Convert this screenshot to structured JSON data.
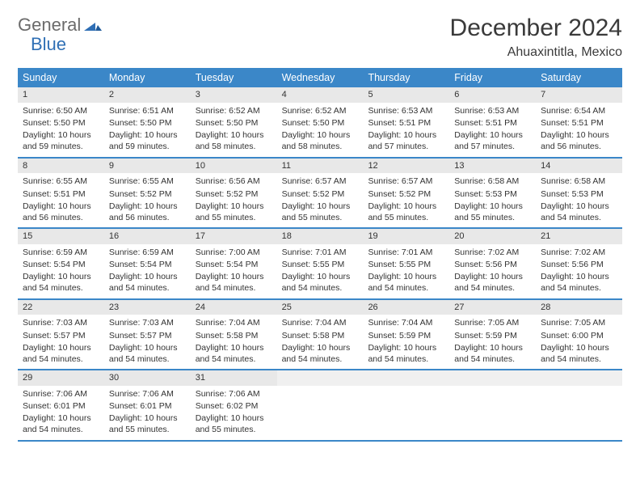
{
  "logo": {
    "text1": "General",
    "text2": "Blue"
  },
  "title": "December 2024",
  "location": "Ahuaxintitla, Mexico",
  "colors": {
    "header_bg": "#3b87c8",
    "header_text": "#ffffff",
    "daynum_bg": "#e8e8e8",
    "border": "#3b87c8",
    "logo_gray": "#6b6b6b",
    "logo_blue": "#2f6fb5"
  },
  "day_names": [
    "Sunday",
    "Monday",
    "Tuesday",
    "Wednesday",
    "Thursday",
    "Friday",
    "Saturday"
  ],
  "weeks": [
    [
      {
        "n": "1",
        "sr": "Sunrise: 6:50 AM",
        "ss": "Sunset: 5:50 PM",
        "dl": "Daylight: 10 hours and 59 minutes."
      },
      {
        "n": "2",
        "sr": "Sunrise: 6:51 AM",
        "ss": "Sunset: 5:50 PM",
        "dl": "Daylight: 10 hours and 59 minutes."
      },
      {
        "n": "3",
        "sr": "Sunrise: 6:52 AM",
        "ss": "Sunset: 5:50 PM",
        "dl": "Daylight: 10 hours and 58 minutes."
      },
      {
        "n": "4",
        "sr": "Sunrise: 6:52 AM",
        "ss": "Sunset: 5:50 PM",
        "dl": "Daylight: 10 hours and 58 minutes."
      },
      {
        "n": "5",
        "sr": "Sunrise: 6:53 AM",
        "ss": "Sunset: 5:51 PM",
        "dl": "Daylight: 10 hours and 57 minutes."
      },
      {
        "n": "6",
        "sr": "Sunrise: 6:53 AM",
        "ss": "Sunset: 5:51 PM",
        "dl": "Daylight: 10 hours and 57 minutes."
      },
      {
        "n": "7",
        "sr": "Sunrise: 6:54 AM",
        "ss": "Sunset: 5:51 PM",
        "dl": "Daylight: 10 hours and 56 minutes."
      }
    ],
    [
      {
        "n": "8",
        "sr": "Sunrise: 6:55 AM",
        "ss": "Sunset: 5:51 PM",
        "dl": "Daylight: 10 hours and 56 minutes."
      },
      {
        "n": "9",
        "sr": "Sunrise: 6:55 AM",
        "ss": "Sunset: 5:52 PM",
        "dl": "Daylight: 10 hours and 56 minutes."
      },
      {
        "n": "10",
        "sr": "Sunrise: 6:56 AM",
        "ss": "Sunset: 5:52 PM",
        "dl": "Daylight: 10 hours and 55 minutes."
      },
      {
        "n": "11",
        "sr": "Sunrise: 6:57 AM",
        "ss": "Sunset: 5:52 PM",
        "dl": "Daylight: 10 hours and 55 minutes."
      },
      {
        "n": "12",
        "sr": "Sunrise: 6:57 AM",
        "ss": "Sunset: 5:52 PM",
        "dl": "Daylight: 10 hours and 55 minutes."
      },
      {
        "n": "13",
        "sr": "Sunrise: 6:58 AM",
        "ss": "Sunset: 5:53 PM",
        "dl": "Daylight: 10 hours and 55 minutes."
      },
      {
        "n": "14",
        "sr": "Sunrise: 6:58 AM",
        "ss": "Sunset: 5:53 PM",
        "dl": "Daylight: 10 hours and 54 minutes."
      }
    ],
    [
      {
        "n": "15",
        "sr": "Sunrise: 6:59 AM",
        "ss": "Sunset: 5:54 PM",
        "dl": "Daylight: 10 hours and 54 minutes."
      },
      {
        "n": "16",
        "sr": "Sunrise: 6:59 AM",
        "ss": "Sunset: 5:54 PM",
        "dl": "Daylight: 10 hours and 54 minutes."
      },
      {
        "n": "17",
        "sr": "Sunrise: 7:00 AM",
        "ss": "Sunset: 5:54 PM",
        "dl": "Daylight: 10 hours and 54 minutes."
      },
      {
        "n": "18",
        "sr": "Sunrise: 7:01 AM",
        "ss": "Sunset: 5:55 PM",
        "dl": "Daylight: 10 hours and 54 minutes."
      },
      {
        "n": "19",
        "sr": "Sunrise: 7:01 AM",
        "ss": "Sunset: 5:55 PM",
        "dl": "Daylight: 10 hours and 54 minutes."
      },
      {
        "n": "20",
        "sr": "Sunrise: 7:02 AM",
        "ss": "Sunset: 5:56 PM",
        "dl": "Daylight: 10 hours and 54 minutes."
      },
      {
        "n": "21",
        "sr": "Sunrise: 7:02 AM",
        "ss": "Sunset: 5:56 PM",
        "dl": "Daylight: 10 hours and 54 minutes."
      }
    ],
    [
      {
        "n": "22",
        "sr": "Sunrise: 7:03 AM",
        "ss": "Sunset: 5:57 PM",
        "dl": "Daylight: 10 hours and 54 minutes."
      },
      {
        "n": "23",
        "sr": "Sunrise: 7:03 AM",
        "ss": "Sunset: 5:57 PM",
        "dl": "Daylight: 10 hours and 54 minutes."
      },
      {
        "n": "24",
        "sr": "Sunrise: 7:04 AM",
        "ss": "Sunset: 5:58 PM",
        "dl": "Daylight: 10 hours and 54 minutes."
      },
      {
        "n": "25",
        "sr": "Sunrise: 7:04 AM",
        "ss": "Sunset: 5:58 PM",
        "dl": "Daylight: 10 hours and 54 minutes."
      },
      {
        "n": "26",
        "sr": "Sunrise: 7:04 AM",
        "ss": "Sunset: 5:59 PM",
        "dl": "Daylight: 10 hours and 54 minutes."
      },
      {
        "n": "27",
        "sr": "Sunrise: 7:05 AM",
        "ss": "Sunset: 5:59 PM",
        "dl": "Daylight: 10 hours and 54 minutes."
      },
      {
        "n": "28",
        "sr": "Sunrise: 7:05 AM",
        "ss": "Sunset: 6:00 PM",
        "dl": "Daylight: 10 hours and 54 minutes."
      }
    ],
    [
      {
        "n": "29",
        "sr": "Sunrise: 7:06 AM",
        "ss": "Sunset: 6:01 PM",
        "dl": "Daylight: 10 hours and 54 minutes."
      },
      {
        "n": "30",
        "sr": "Sunrise: 7:06 AM",
        "ss": "Sunset: 6:01 PM",
        "dl": "Daylight: 10 hours and 55 minutes."
      },
      {
        "n": "31",
        "sr": "Sunrise: 7:06 AM",
        "ss": "Sunset: 6:02 PM",
        "dl": "Daylight: 10 hours and 55 minutes."
      },
      {
        "empty": true
      },
      {
        "empty": true
      },
      {
        "empty": true
      },
      {
        "empty": true
      }
    ]
  ]
}
